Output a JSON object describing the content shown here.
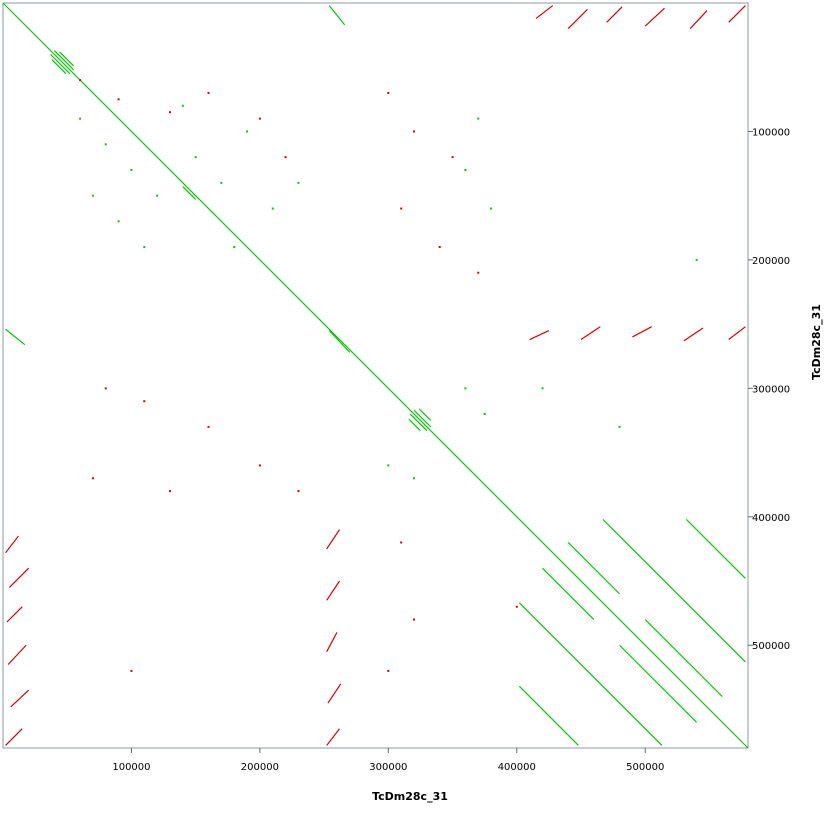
{
  "chart_data": {
    "type": "dotplot",
    "x_label": "TcDm28c_31",
    "y_label": "TcDm28c_31",
    "xlim": [
      0,
      580000
    ],
    "ylim": [
      0,
      580000
    ],
    "xticks": [
      100000,
      200000,
      300000,
      400000,
      500000
    ],
    "yticks": [
      100000,
      200000,
      300000,
      400000,
      500000
    ],
    "forward": {
      "color": "#00cc00",
      "segments": [
        [
          0,
          0,
          580000,
          580000
        ],
        [
          37000,
          40000,
          52000,
          55000
        ],
        [
          40000,
          37000,
          55000,
          52000
        ],
        [
          38000,
          44000,
          49000,
          55000
        ],
        [
          44000,
          38000,
          55000,
          49000
        ],
        [
          317000,
          320000,
          330000,
          333000
        ],
        [
          320000,
          317000,
          333000,
          330000
        ],
        [
          316000,
          324000,
          325000,
          333000
        ],
        [
          324000,
          316000,
          333000,
          325000
        ],
        [
          402000,
          467000,
          513000,
          578000
        ],
        [
          467000,
          402000,
          578000,
          513000
        ],
        [
          402000,
          532000,
          448000,
          578000
        ],
        [
          532000,
          402000,
          578000,
          448000
        ],
        [
          420000,
          440000,
          460000,
          480000
        ],
        [
          440000,
          420000,
          480000,
          460000
        ],
        [
          480000,
          500000,
          540000,
          560000
        ],
        [
          500000,
          480000,
          560000,
          540000
        ],
        [
          254000,
          2000,
          266000,
          17000
        ],
        [
          2000,
          254000,
          17000,
          266000
        ],
        [
          254000,
          255000,
          270000,
          272000
        ],
        [
          140000,
          143000,
          150000,
          153000
        ]
      ]
    },
    "reverse": {
      "color": "#dd0000",
      "segments": [
        [
          415000,
          12000,
          428000,
          2000
        ],
        [
          440000,
          20000,
          455000,
          5000
        ],
        [
          470000,
          15000,
          482000,
          3000
        ],
        [
          500000,
          18000,
          515000,
          4000
        ],
        [
          535000,
          20000,
          548000,
          6000
        ],
        [
          565000,
          15000,
          578000,
          2000
        ],
        [
          410000,
          262000,
          425000,
          255000
        ],
        [
          450000,
          262000,
          465000,
          252000
        ],
        [
          490000,
          260000,
          505000,
          252000
        ],
        [
          530000,
          263000,
          545000,
          253000
        ],
        [
          565000,
          262000,
          578000,
          252000
        ],
        [
          2000,
          428000,
          12000,
          415000
        ],
        [
          5000,
          455000,
          20000,
          440000
        ],
        [
          3000,
          482000,
          15000,
          470000
        ],
        [
          4000,
          515000,
          18000,
          500000
        ],
        [
          6000,
          548000,
          20000,
          535000
        ],
        [
          2000,
          578000,
          15000,
          565000
        ],
        [
          252000,
          425000,
          262000,
          410000
        ],
        [
          252000,
          465000,
          262000,
          450000
        ],
        [
          252000,
          505000,
          260000,
          490000
        ],
        [
          253000,
          545000,
          263000,
          530000
        ],
        [
          252000,
          578000,
          262000,
          565000
        ]
      ]
    },
    "forward_dots": [
      [
        60000,
        90000
      ],
      [
        80000,
        110000
      ],
      [
        100000,
        130000
      ],
      [
        120000,
        150000
      ],
      [
        70000,
        150000
      ],
      [
        90000,
        170000
      ],
      [
        150000,
        120000
      ],
      [
        170000,
        140000
      ],
      [
        190000,
        100000
      ],
      [
        210000,
        160000
      ],
      [
        180000,
        190000
      ],
      [
        230000,
        140000
      ],
      [
        110000,
        190000
      ],
      [
        140000,
        80000
      ],
      [
        370000,
        90000
      ],
      [
        360000,
        130000
      ],
      [
        380000,
        160000
      ],
      [
        300000,
        360000
      ],
      [
        320000,
        370000
      ],
      [
        360000,
        300000
      ],
      [
        375000,
        320000
      ],
      [
        420000,
        300000
      ],
      [
        480000,
        330000
      ],
      [
        540000,
        200000
      ]
    ],
    "reverse_dots": [
      [
        60000,
        60000
      ],
      [
        90000,
        75000
      ],
      [
        130000,
        85000
      ],
      [
        160000,
        70000
      ],
      [
        200000,
        90000
      ],
      [
        220000,
        120000
      ],
      [
        300000,
        70000
      ],
      [
        320000,
        100000
      ],
      [
        350000,
        120000
      ],
      [
        310000,
        160000
      ],
      [
        340000,
        190000
      ],
      [
        370000,
        210000
      ],
      [
        80000,
        300000
      ],
      [
        110000,
        310000
      ],
      [
        160000,
        330000
      ],
      [
        200000,
        360000
      ],
      [
        230000,
        380000
      ],
      [
        70000,
        370000
      ],
      [
        130000,
        380000
      ],
      [
        310000,
        420000
      ],
      [
        320000,
        480000
      ],
      [
        300000,
        520000
      ],
      [
        400000,
        470000
      ],
      [
        100000,
        520000
      ]
    ]
  }
}
